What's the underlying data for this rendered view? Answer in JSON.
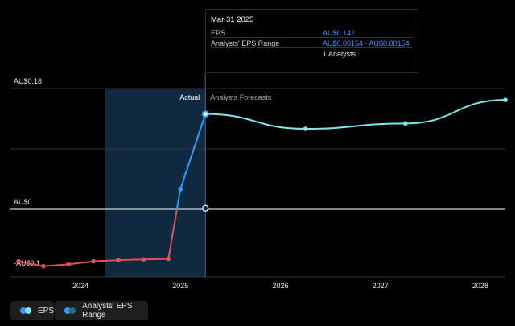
{
  "colors": {
    "background": "#000000",
    "actual_line": "#2e9bff",
    "negative_line": "#e0505a",
    "forecast_line": "#7fe8e8",
    "zero_line": "#ffffff",
    "highlight_band": "#0f2a40",
    "grid": "#333333",
    "legend_bg": "#1e1e1e"
  },
  "tooltip": {
    "date": "Mar 31 2025",
    "rows": [
      {
        "label": "EPS",
        "value": "AU$0.142"
      },
      {
        "label": "Analysts' EPS Range",
        "value": "AU$0.00154 - AU$0.00154"
      },
      {
        "label": "",
        "value": "1 Analysts"
      }
    ]
  },
  "legend": {
    "items": [
      {
        "label": "EPS"
      },
      {
        "label": "Analysts' EPS Range"
      }
    ]
  },
  "chart_data": {
    "type": "line",
    "y_labels": [
      "AU$0.18",
      "AU$0",
      "-AU$0.1"
    ],
    "x_ticks": [
      "2024",
      "2025",
      "2026",
      "2027",
      "2028"
    ],
    "region_labels": {
      "actual": "Actual",
      "forecast": "Analysts Forecasts"
    },
    "ylim": [
      -0.1,
      0.18
    ],
    "xlim": [
      2023.3,
      2028.25
    ],
    "divider_x": 2025.25,
    "highlight_start_x": 2024.25,
    "series": [
      {
        "name": "EPS",
        "points": [
          [
            2023.38,
            -0.085
          ],
          [
            2023.63,
            -0.093
          ],
          [
            2023.88,
            -0.09
          ],
          [
            2024.13,
            -0.085
          ],
          [
            2024.38,
            -0.083
          ],
          [
            2024.63,
            -0.082
          ],
          [
            2024.88,
            -0.081
          ],
          [
            2025.0,
            0.03
          ],
          [
            2025.25,
            0.142
          ]
        ]
      },
      {
        "name": "Analysts Forecasts",
        "points": [
          [
            2025.25,
            0.142
          ],
          [
            2026.25,
            0.12
          ],
          [
            2027.25,
            0.128
          ],
          [
            2028.25,
            0.163
          ]
        ]
      },
      {
        "name": "Analysts' EPS Range",
        "points": [
          [
            2025.25,
            0.00154
          ]
        ]
      }
    ]
  }
}
